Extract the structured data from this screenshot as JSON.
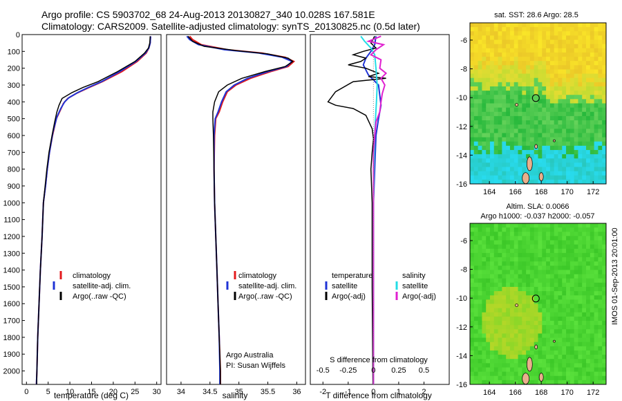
{
  "header": {
    "line1": "Argo profile: CS 5903702_68 24-Aug-2013 20130827_340 10.028S 167.581E",
    "line2": "Climatology: CARS2009. Satellite-adjusted climatology: synTS_20130825.nc (0.5d later)"
  },
  "colors": {
    "climatology": "#e31a1c",
    "satellite": "#1f33d6",
    "argo": "#000000",
    "salinity_satellite": "#22dde6",
    "salinity_argo": "#e020d0"
  },
  "chart_data": [
    {
      "type": "line",
      "id": "temperature",
      "xlabel": "temperature (deg C)",
      "ylabel": "",
      "xlim": [
        -1,
        31
      ],
      "ylim": [
        2080,
        0
      ],
      "xticks": [
        0,
        5,
        10,
        15,
        20,
        25,
        30
      ],
      "yticks": [
        0,
        100,
        200,
        300,
        400,
        500,
        600,
        700,
        800,
        900,
        1000,
        1100,
        1200,
        1300,
        1400,
        1500,
        1600,
        1700,
        1800,
        1900,
        2000
      ],
      "legend": [
        "climatology",
        "satellite-adj. clim.",
        "Argo(..raw -QC)"
      ],
      "series": [
        {
          "name": "climatology",
          "points": [
            [
              28.6,
              10
            ],
            [
              28.5,
              50
            ],
            [
              28.2,
              80
            ],
            [
              27.6,
              110
            ],
            [
              25.5,
              160
            ],
            [
              22.0,
              220
            ],
            [
              17.5,
              280
            ],
            [
              14.0,
              320
            ],
            [
              11.5,
              350
            ],
            [
              9.5,
              380
            ],
            [
              8.5,
              410
            ],
            [
              7.8,
              450
            ],
            [
              6.9,
              500
            ],
            [
              6.0,
              600
            ],
            [
              5.3,
              700
            ],
            [
              4.8,
              800
            ],
            [
              4.4,
              900
            ],
            [
              3.9,
              1000
            ],
            [
              3.6,
              1200
            ],
            [
              3.2,
              1400
            ],
            [
              2.9,
              1600
            ],
            [
              2.6,
              1800
            ],
            [
              2.4,
              2000
            ],
            [
              2.3,
              2080
            ]
          ]
        },
        {
          "name": "satellite-adj. clim.",
          "points": [
            [
              28.6,
              10
            ],
            [
              28.5,
              50
            ],
            [
              28.2,
              80
            ],
            [
              27.4,
              110
            ],
            [
              25.2,
              160
            ],
            [
              21.5,
              220
            ],
            [
              17.3,
              280
            ],
            [
              14.2,
              315
            ],
            [
              11.8,
              345
            ],
            [
              9.8,
              375
            ],
            [
              8.8,
              400
            ],
            [
              7.9,
              440
            ],
            [
              7.0,
              490
            ],
            [
              6.1,
              580
            ],
            [
              5.3,
              700
            ],
            [
              4.8,
              800
            ],
            [
              4.4,
              900
            ],
            [
              3.9,
              1000
            ],
            [
              3.6,
              1200
            ],
            [
              3.2,
              1400
            ],
            [
              2.9,
              1600
            ],
            [
              2.6,
              1800
            ],
            [
              2.4,
              2000
            ],
            [
              2.3,
              2080
            ]
          ]
        },
        {
          "name": "Argo(..raw -QC)",
          "points": [
            [
              28.5,
              10
            ],
            [
              28.4,
              50
            ],
            [
              28.1,
              80
            ],
            [
              27.2,
              110
            ],
            [
              25.0,
              160
            ],
            [
              21.0,
              220
            ],
            [
              16.5,
              280
            ],
            [
              13.0,
              315
            ],
            [
              10.5,
              345
            ],
            [
              8.2,
              380
            ],
            [
              7.5,
              420
            ],
            [
              7.0,
              460
            ],
            [
              6.5,
              520
            ],
            [
              5.9,
              600
            ],
            [
              5.2,
              700
            ],
            [
              4.7,
              800
            ],
            [
              4.3,
              900
            ],
            [
              3.9,
              1000
            ],
            [
              3.6,
              1200
            ],
            [
              3.2,
              1400
            ],
            [
              2.9,
              1600
            ],
            [
              2.6,
              1800
            ],
            [
              2.4,
              2000
            ],
            [
              2.35,
              2080
            ]
          ]
        }
      ]
    },
    {
      "type": "line",
      "id": "salinity",
      "xlabel": "salinity",
      "ylabel": "",
      "xlim": [
        33.75,
        36.15
      ],
      "ylim": [
        2080,
        0
      ],
      "xticks": [
        34,
        34.5,
        35,
        35.5,
        36
      ],
      "legend": [
        "climatology",
        "satellite-adj. clim.",
        "Argo(..raw -QC)"
      ],
      "annotations": [
        "Argo Australia",
        "PI: Susan Wijffels"
      ],
      "series": [
        {
          "name": "climatology",
          "points": [
            [
              34.15,
              10
            ],
            [
              34.2,
              30
            ],
            [
              34.35,
              60
            ],
            [
              34.8,
              90
            ],
            [
              35.4,
              110
            ],
            [
              35.8,
              135
            ],
            [
              35.95,
              160
            ],
            [
              35.85,
              190
            ],
            [
              35.55,
              220
            ],
            [
              35.2,
              260
            ],
            [
              34.95,
              300
            ],
            [
              34.8,
              340
            ],
            [
              34.72,
              400
            ],
            [
              34.66,
              460
            ],
            [
              34.6,
              500
            ],
            [
              34.58,
              600
            ],
            [
              34.57,
              800
            ],
            [
              34.58,
              1000
            ],
            [
              34.6,
              1200
            ],
            [
              34.62,
              1400
            ],
            [
              34.64,
              1600
            ],
            [
              34.66,
              1800
            ],
            [
              34.68,
              2000
            ],
            [
              34.68,
              2080
            ]
          ]
        },
        {
          "name": "satellite-adj. clim.",
          "points": [
            [
              34.1,
              10
            ],
            [
              34.15,
              30
            ],
            [
              34.3,
              60
            ],
            [
              34.75,
              90
            ],
            [
              35.35,
              110
            ],
            [
              35.75,
              135
            ],
            [
              35.92,
              160
            ],
            [
              35.82,
              190
            ],
            [
              35.5,
              220
            ],
            [
              35.15,
              260
            ],
            [
              34.92,
              300
            ],
            [
              34.78,
              340
            ],
            [
              34.7,
              400
            ],
            [
              34.64,
              460
            ],
            [
              34.59,
              500
            ],
            [
              34.57,
              600
            ],
            [
              34.57,
              800
            ],
            [
              34.58,
              1000
            ],
            [
              34.6,
              1200
            ],
            [
              34.62,
              1400
            ],
            [
              34.64,
              1600
            ],
            [
              34.66,
              1800
            ],
            [
              34.67,
              2000
            ],
            [
              34.67,
              2080
            ]
          ]
        },
        {
          "name": "Argo(..raw -QC)",
          "points": [
            [
              34.12,
              10
            ],
            [
              34.2,
              40
            ],
            [
              34.4,
              70
            ],
            [
              34.95,
              95
            ],
            [
              35.5,
              115
            ],
            [
              35.85,
              140
            ],
            [
              35.93,
              160
            ],
            [
              35.8,
              190
            ],
            [
              35.45,
              220
            ],
            [
              35.05,
              260
            ],
            [
              34.8,
              300
            ],
            [
              34.65,
              340
            ],
            [
              34.58,
              400
            ],
            [
              34.55,
              460
            ],
            [
              34.55,
              500
            ],
            [
              34.56,
              600
            ],
            [
              34.57,
              800
            ],
            [
              34.58,
              1000
            ],
            [
              34.6,
              1200
            ],
            [
              34.62,
              1400
            ],
            [
              34.64,
              1600
            ],
            [
              34.66,
              1800
            ],
            [
              34.68,
              2000
            ],
            [
              34.68,
              2080
            ]
          ]
        }
      ]
    },
    {
      "type": "line",
      "id": "difference",
      "xlabel": "T difference from climatology",
      "xlabel_top": "S difference from climatology",
      "ylabel": "",
      "xlim": [
        -2.5,
        3.0
      ],
      "ylim": [
        2080,
        0
      ],
      "xticks": [
        -2,
        -1,
        0,
        1,
        2
      ],
      "xticks_s": [
        "-0.5",
        "-0.25",
        "0",
        "0.25",
        "0.5"
      ],
      "legend_t": {
        "title": "temperature",
        "items": [
          "satellite",
          "Argo(-adj)"
        ]
      },
      "legend_s": {
        "title": "salinity",
        "items": [
          "satellite",
          "Argo(-adj)"
        ]
      },
      "series": [
        {
          "name": "temperature satellite",
          "points": [
            [
              0.1,
              10
            ],
            [
              0.05,
              60
            ],
            [
              -0.1,
              100
            ],
            [
              -0.3,
              140
            ],
            [
              -0.4,
              180
            ],
            [
              -0.2,
              240
            ],
            [
              0.2,
              300
            ],
            [
              0.25,
              360
            ],
            [
              0.3,
              420
            ],
            [
              0.2,
              500
            ],
            [
              0.1,
              600
            ],
            [
              0.05,
              800
            ],
            [
              0.0,
              1000
            ],
            [
              0.0,
              1500
            ],
            [
              0.0,
              2080
            ]
          ]
        },
        {
          "name": "temperature Argo(-adj)",
          "points": [
            [
              0.05,
              10
            ],
            [
              -0.1,
              50
            ],
            [
              0.1,
              80
            ],
            [
              -0.4,
              100
            ],
            [
              -0.8,
              120
            ],
            [
              -0.3,
              140
            ],
            [
              -0.5,
              160
            ],
            [
              -1.0,
              180
            ],
            [
              -0.3,
              200
            ],
            [
              0.2,
              230
            ],
            [
              -0.2,
              250
            ],
            [
              0.5,
              260
            ],
            [
              -0.8,
              280
            ],
            [
              -1.5,
              340
            ],
            [
              -1.8,
              400
            ],
            [
              -1.5,
              420
            ],
            [
              -0.8,
              440
            ],
            [
              -0.3,
              480
            ],
            [
              -0.05,
              560
            ],
            [
              0.0,
              620
            ],
            [
              -0.05,
              700
            ],
            [
              -0.1,
              800
            ],
            [
              -0.05,
              1000
            ],
            [
              -0.05,
              1500
            ],
            [
              -0.02,
              2080
            ]
          ]
        },
        {
          "name": "salinity satellite",
          "points": [
            [
              -0.5,
              10
            ],
            [
              -0.35,
              40
            ],
            [
              -0.1,
              80
            ],
            [
              0.05,
              120
            ],
            [
              0.1,
              200
            ],
            [
              0.15,
              300
            ],
            [
              0.12,
              400
            ],
            [
              0.1,
              450
            ],
            [
              0.08,
              500
            ],
            [
              0.05,
              600
            ],
            [
              0.02,
              800
            ],
            [
              0.0,
              1000
            ],
            [
              0.0,
              1500
            ],
            [
              0.0,
              2080
            ]
          ]
        },
        {
          "name": "salinity Argo(-adj)",
          "points": [
            [
              0.3,
              10
            ],
            [
              -0.2,
              40
            ],
            [
              0.4,
              60
            ],
            [
              0.1,
              90
            ],
            [
              -0.1,
              120
            ],
            [
              0.3,
              150
            ],
            [
              0.25,
              200
            ],
            [
              0.5,
              230
            ],
            [
              0.3,
              260
            ],
            [
              0.45,
              300
            ],
            [
              0.35,
              350
            ],
            [
              0.3,
              400
            ],
            [
              0.25,
              460
            ],
            [
              0.1,
              520
            ],
            [
              0.05,
              600
            ],
            [
              0.0,
              700
            ],
            [
              0.0,
              1000
            ],
            [
              0.0,
              1500
            ],
            [
              0.0,
              2080
            ]
          ]
        }
      ]
    },
    {
      "type": "heatmap",
      "id": "sst-map",
      "title": "sat. SST: 28.6 Argo: 28.5",
      "xlim": [
        162.5,
        173
      ],
      "ylim": [
        -16,
        -4.8
      ],
      "xticks": [
        164,
        166,
        168,
        170,
        172
      ],
      "yticks": [
        -6,
        -8,
        -10,
        -12,
        -14,
        -16
      ],
      "marker": {
        "x": 167.58,
        "y": -10.03
      }
    },
    {
      "type": "heatmap",
      "id": "sla-map",
      "title_line1": "Altim. SLA: 0.0066",
      "title_line2": "Argo h1000: -0.037 h2000: -0.057",
      "xlim": [
        162.5,
        173
      ],
      "ylim": [
        -16,
        -4.8
      ],
      "xticks": [
        164,
        166,
        168,
        170,
        172
      ],
      "yticks": [
        -6,
        -8,
        -10,
        -12,
        -14,
        -16
      ],
      "marker": {
        "x": 167.58,
        "y": -10.03
      }
    }
  ],
  "footer": {
    "imos_stamp": "IMOS 01-Sep-2013 20:01:00"
  }
}
